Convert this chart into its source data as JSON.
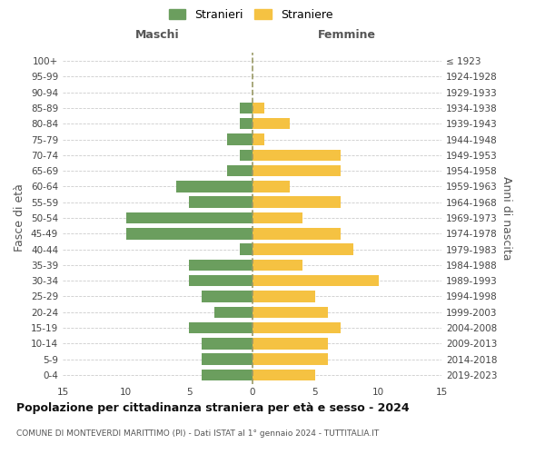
{
  "age_groups": [
    "0-4",
    "5-9",
    "10-14",
    "15-19",
    "20-24",
    "25-29",
    "30-34",
    "35-39",
    "40-44",
    "45-49",
    "50-54",
    "55-59",
    "60-64",
    "65-69",
    "70-74",
    "75-79",
    "80-84",
    "85-89",
    "90-94",
    "95-99",
    "100+"
  ],
  "birth_years": [
    "2019-2023",
    "2014-2018",
    "2009-2013",
    "2004-2008",
    "1999-2003",
    "1994-1998",
    "1989-1993",
    "1984-1988",
    "1979-1983",
    "1974-1978",
    "1969-1973",
    "1964-1968",
    "1959-1963",
    "1954-1958",
    "1949-1953",
    "1944-1948",
    "1939-1943",
    "1934-1938",
    "1929-1933",
    "1924-1928",
    "≤ 1923"
  ],
  "males": [
    4,
    4,
    4,
    5,
    3,
    4,
    5,
    5,
    1,
    10,
    10,
    5,
    6,
    2,
    1,
    2,
    1,
    1,
    0,
    0,
    0
  ],
  "females": [
    5,
    6,
    6,
    7,
    6,
    5,
    10,
    4,
    8,
    7,
    4,
    7,
    3,
    7,
    7,
    1,
    3,
    1,
    0,
    0,
    0
  ],
  "male_color": "#6b9e5e",
  "female_color": "#f5c242",
  "background_color": "#ffffff",
  "grid_color": "#cccccc",
  "dashed_color": "#999966",
  "title": "Popolazione per cittadinanza straniera per età e sesso - 2024",
  "subtitle": "COMUNE DI MONTEVERDI MARITTIMO (PI) - Dati ISTAT al 1° gennaio 2024 - TUTTITALIA.IT",
  "ylabel_left": "Fasce di età",
  "ylabel_right": "Anni di nascita",
  "xlabel_left": "Maschi",
  "xlabel_right": "Femmine",
  "legend_males": "Stranieri",
  "legend_females": "Straniere",
  "xlim": 15,
  "bar_height": 0.72,
  "title_fontsize": 9,
  "subtitle_fontsize": 6.5,
  "tick_fontsize": 7.5,
  "label_fontsize": 9
}
